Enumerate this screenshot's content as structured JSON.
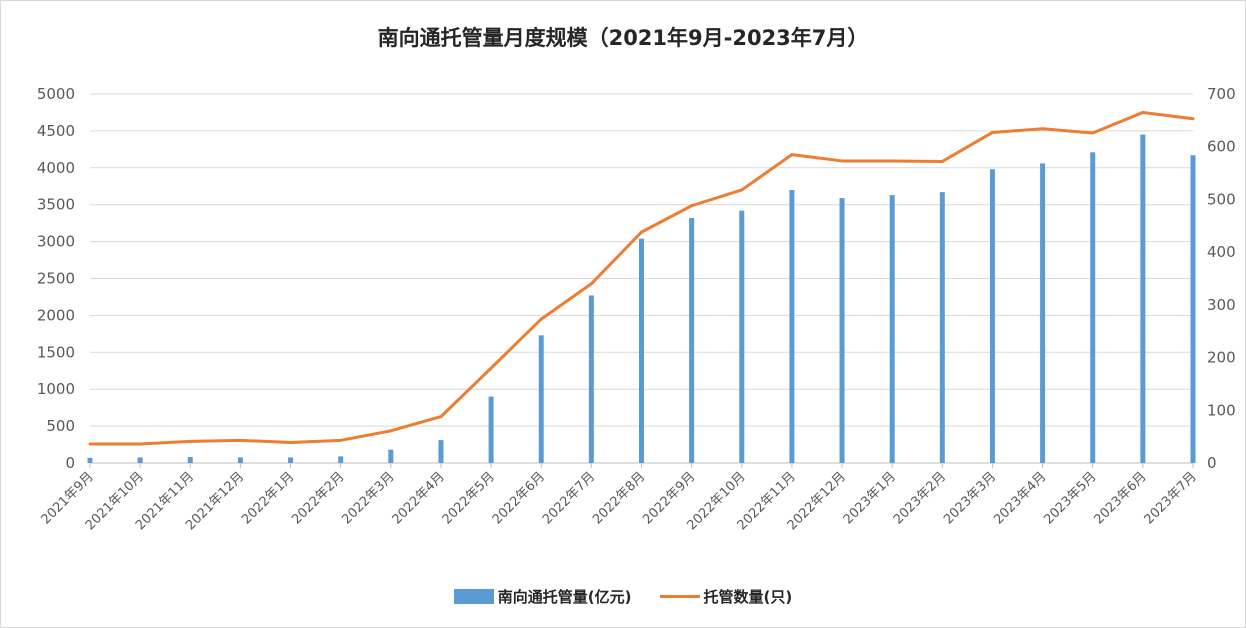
{
  "chart_data": {
    "type": "bar+line",
    "title": "南向通托管量月度规模（2021年9月-2023年7月）",
    "categories": [
      "2021年9月",
      "2021年10月",
      "2021年11月",
      "2021年12月",
      "2022年1月",
      "2022年2月",
      "2022年3月",
      "2022年4月",
      "2022年5月",
      "2022年6月",
      "2022年7月",
      "2022年8月",
      "2022年9月",
      "2022年10月",
      "2022年11月",
      "2022年12月",
      "2023年1月",
      "2023年2月",
      "2023年3月",
      "2023年4月",
      "2023年5月",
      "2023年6月",
      "2023年7月"
    ],
    "series": [
      {
        "name": "南向通托管量(亿元)",
        "type": "bar",
        "axis": "left",
        "color": "#5b9bd5",
        "values": [
          70,
          75,
          80,
          75,
          75,
          90,
          180,
          310,
          900,
          1730,
          2270,
          3040,
          3320,
          3420,
          3700,
          3590,
          3630,
          3670,
          3980,
          4060,
          4210,
          4450,
          4170
        ]
      },
      {
        "name": "托管数量(只)",
        "type": "line",
        "axis": "right",
        "color": "#ed7d31",
        "values": [
          36,
          36,
          41,
          43,
          39,
          43,
          61,
          88,
          180,
          273,
          340,
          438,
          488,
          518,
          585,
          573,
          573,
          572,
          627,
          634,
          626,
          665,
          653
        ]
      }
    ],
    "y_left": {
      "min": 0,
      "max": 5000,
      "step": 500,
      "ticks": [
        "0",
        "500",
        "1000",
        "1500",
        "2000",
        "2500",
        "3000",
        "3500",
        "4000",
        "4500",
        "5000"
      ]
    },
    "y_right": {
      "min": 0,
      "max": 700,
      "step": 100,
      "ticks": [
        "0",
        "100",
        "200",
        "300",
        "400",
        "500",
        "600",
        "700"
      ]
    },
    "legend_position": "bottom",
    "grid": true
  }
}
